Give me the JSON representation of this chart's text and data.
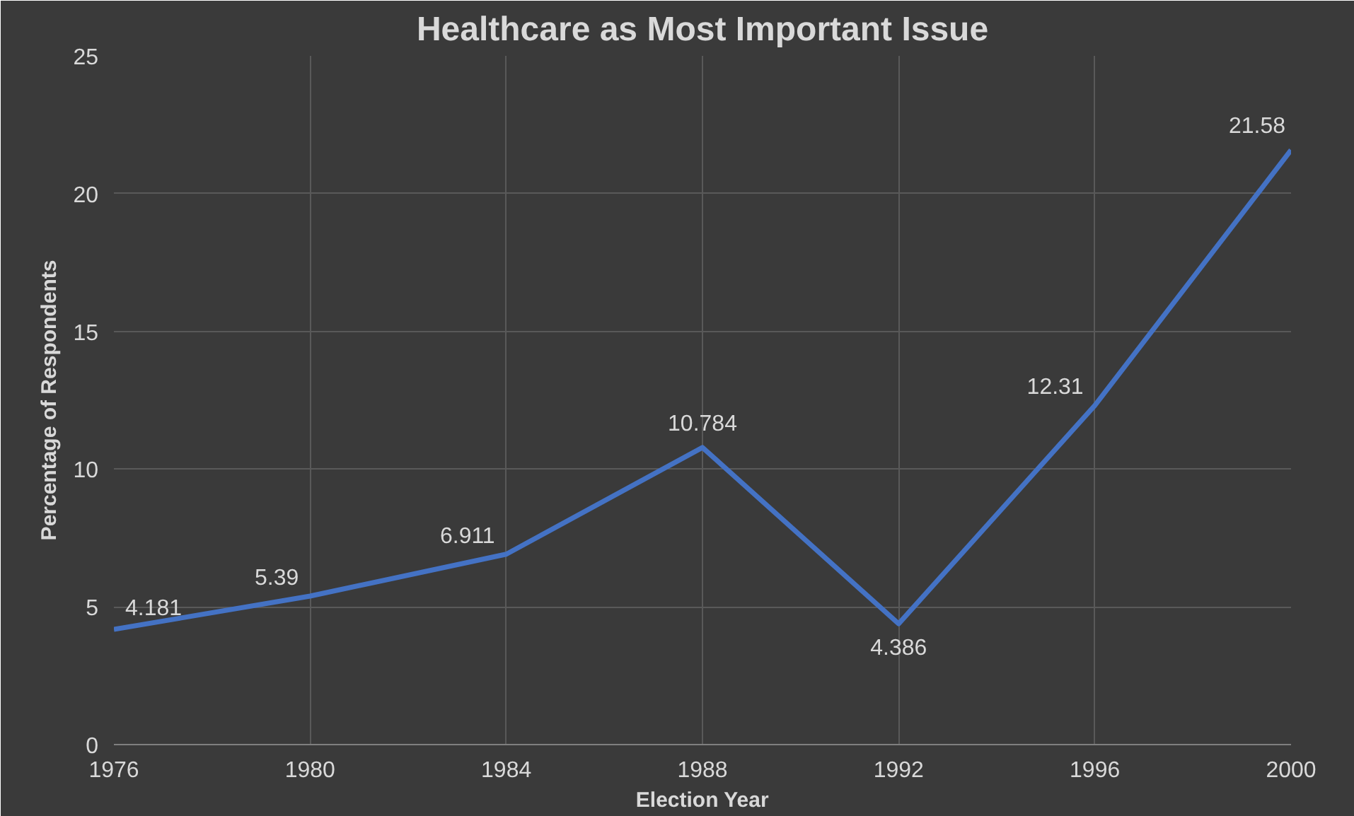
{
  "chart_data": {
    "type": "line",
    "title": "Healthcare as Most Important Issue",
    "xlabel": "Election Year",
    "ylabel": "Percentage of Respondents",
    "x": [
      1976,
      1980,
      1984,
      1988,
      1992,
      1996,
      2000
    ],
    "series": [
      {
        "color": "#4472c4",
        "values": [
          4.181,
          5.39,
          6.911,
          10.784,
          4.386,
          12.31,
          21.58
        ]
      }
    ],
    "xlim": [
      1976,
      2000
    ],
    "xticks": [
      1976,
      1980,
      1984,
      1988,
      1992,
      1996,
      2000
    ],
    "ylim": [
      0,
      25
    ],
    "yticks": [
      0,
      5,
      10,
      15,
      20,
      25
    ],
    "grid": true,
    "data_labels": true,
    "marker": "none",
    "line_style": "solid"
  }
}
